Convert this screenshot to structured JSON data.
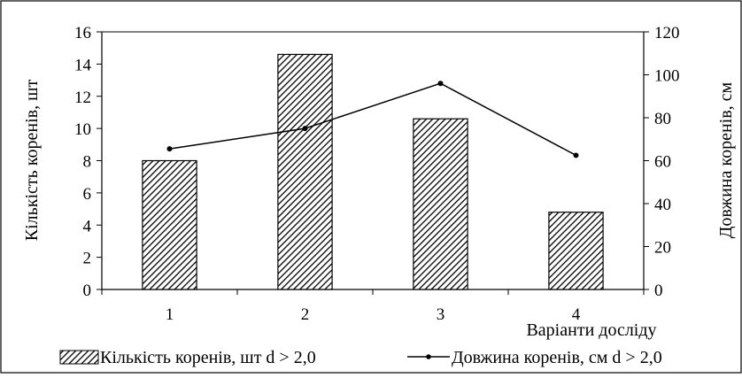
{
  "chart_data": {
    "type": "bar+line",
    "categories": [
      "1",
      "2",
      "3",
      "4"
    ],
    "xlabel": "Варіанти досліду",
    "series": [
      {
        "name": "Кількість коренів, шт d > 2,0",
        "kind": "bar",
        "axis": "left",
        "values": [
          8.0,
          14.6,
          10.6,
          4.8
        ]
      },
      {
        "name": "Довжина коренів, см d > 2,0",
        "kind": "line",
        "axis": "right",
        "values": [
          65.5,
          75,
          96,
          62.5
        ]
      }
    ],
    "y_left": {
      "label": "Кількість коренів, шт",
      "range": [
        0,
        16
      ],
      "ticks": [
        "0",
        "2",
        "4",
        "6",
        "8",
        "10",
        "12",
        "14",
        "16"
      ]
    },
    "y_right": {
      "label": "Довжина коренів, см",
      "range": [
        0,
        120
      ],
      "ticks": [
        "0",
        "20",
        "40",
        "60",
        "80",
        "100",
        "120"
      ]
    },
    "grid": "top border only",
    "legend_position": "bottom",
    "bar_fill": "diagonal-hatch",
    "colors": {
      "ink": "#000000",
      "background": "#ffffff"
    }
  }
}
